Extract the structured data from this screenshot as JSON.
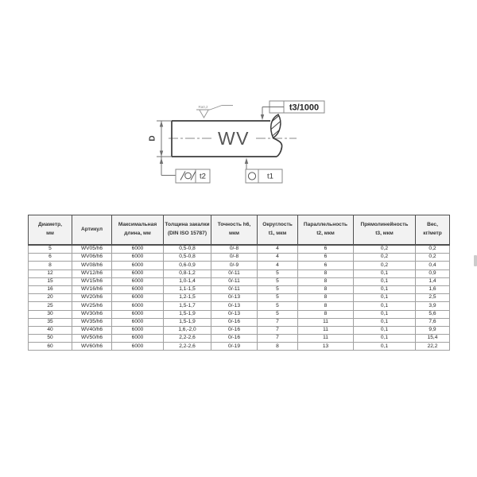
{
  "drawing": {
    "shaft_label": "WV",
    "diameter_label": "D",
    "surface_roughness": "Ra0,2",
    "straightness_callout": "t3/1000",
    "cylindricity_callout": "t2",
    "roundness_callout": "t1"
  },
  "table": {
    "headers": [
      "Диаметр,\nмм",
      "Артикул",
      "Максимальная\nдлина, мм",
      "Толщина закалки\n(DIN ISO 15787)",
      "Точность h6,\nмкм",
      "Округлость\nt1, мкм",
      "Параллельность\nt2, мкм",
      "Прямолинейность\nt3, мкм",
      "Вес,\nкг/метр"
    ],
    "rows": [
      [
        "5",
        "WV05/h6",
        "6000",
        "0,5-0,8",
        "0/-8",
        "4",
        "6",
        "0,2",
        "0,2"
      ],
      [
        "6",
        "WV06/h6",
        "6000",
        "0,5-0,8",
        "0/-8",
        "4",
        "6",
        "0,2",
        "0,2"
      ],
      [
        "8",
        "WV08/h6",
        "6000",
        "0,6-0,9",
        "0/-9",
        "4",
        "6",
        "0,2",
        "0,4"
      ],
      [
        "12",
        "WV12/h6",
        "6000",
        "0,8-1,2",
        "0/-11",
        "5",
        "8",
        "0,1",
        "0,9"
      ],
      [
        "15",
        "WV15/h6",
        "6000",
        "1,0-1,4",
        "0/-11",
        "5",
        "8",
        "0,1",
        "1,4"
      ],
      [
        "16",
        "WV16/h6",
        "6000",
        "1,1-1,5",
        "0/-11",
        "5",
        "8",
        "0,1",
        "1,6"
      ],
      [
        "20",
        "WV20/h6",
        "6000",
        "1,2-1,5",
        "0/-13",
        "5",
        "8",
        "0,1",
        "2,5"
      ],
      [
        "25",
        "WV25/h6",
        "6000",
        "1,5-1,7",
        "0/-13",
        "5",
        "8",
        "0,1",
        "3,9"
      ],
      [
        "30",
        "WV30/h6",
        "6000",
        "1,5-1,9",
        "0/-13",
        "5",
        "8",
        "0,1",
        "5,6"
      ],
      [
        "35",
        "WV35/h6",
        "6000",
        "1,5-1,9",
        "0/-16",
        "7",
        "11",
        "0,1",
        "7,6"
      ],
      [
        "40",
        "WV40/h6",
        "6000",
        "1,6,-2,0",
        "0/-16",
        "7",
        "11",
        "0,1",
        "9,9"
      ],
      [
        "50",
        "WV50/h6",
        "6000",
        "2,2-2,6",
        "0/-16",
        "7",
        "11",
        "0,1",
        "15,4"
      ],
      [
        "60",
        "WV60/h6",
        "6000",
        "2,2-2,6",
        "0/-19",
        "8",
        "13",
        "0,1",
        "22,2"
      ]
    ]
  }
}
